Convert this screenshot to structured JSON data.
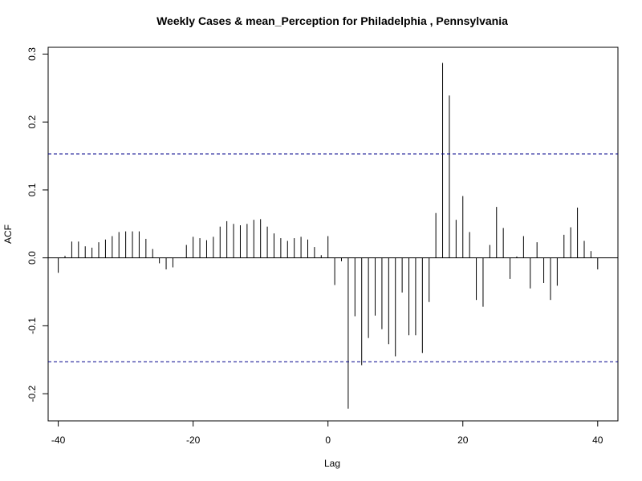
{
  "chart_data": {
    "type": "bar",
    "title": "Weekly Cases & mean_Perception for Philadelphia , Pennsylvania",
    "xlabel": "Lag",
    "ylabel": "ACF",
    "xlim": [
      -41.5,
      43
    ],
    "ylim": [
      -0.24,
      0.31
    ],
    "x_ticks": [
      -40,
      -20,
      0,
      20,
      40
    ],
    "x_tick_labels": [
      "-40",
      "-20",
      "0",
      "20",
      "40"
    ],
    "y_ticks": [
      -0.2,
      -0.1,
      0.0,
      0.1,
      0.2,
      0.3
    ],
    "y_tick_labels": [
      "-0.2",
      "-0.1",
      "0.0",
      "0.1",
      "0.2",
      "0.3"
    ],
    "confidence_bound": 0.153,
    "colors": {
      "bars": "#000000",
      "confidence": "#00008B",
      "zero_line": "#000000"
    },
    "series": [
      {
        "lags": [
          -40,
          -39,
          -38,
          -37,
          -36,
          -35,
          -34,
          -33,
          -32,
          -31,
          -30,
          -29,
          -28,
          -27,
          -26,
          -25,
          -24,
          -23,
          -22,
          -21,
          -20,
          -19,
          -18,
          -17,
          -16,
          -15,
          -14,
          -13,
          -12,
          -11,
          -10,
          -9,
          -8,
          -7,
          -6,
          -5,
          -4,
          -3,
          -2,
          -1,
          0,
          1,
          2,
          3,
          4,
          5,
          6,
          7,
          8,
          9,
          10,
          11,
          12,
          13,
          14,
          15,
          16,
          17,
          18,
          19,
          20,
          21,
          22,
          23,
          24,
          25,
          26,
          27,
          28,
          29,
          30,
          31,
          32,
          33,
          34,
          35,
          36,
          37,
          38,
          39,
          40
        ],
        "values": [
          -0.022,
          0.003,
          0.024,
          0.024,
          0.017,
          0.015,
          0.023,
          0.027,
          0.032,
          0.038,
          0.039,
          0.039,
          0.039,
          0.028,
          0.013,
          -0.008,
          -0.017,
          -0.014,
          0.0,
          0.019,
          0.031,
          0.029,
          0.026,
          0.031,
          0.046,
          0.054,
          0.05,
          0.048,
          0.05,
          0.056,
          0.057,
          0.046,
          0.036,
          0.029,
          0.025,
          0.029,
          0.031,
          0.027,
          0.016,
          0.004,
          0.032,
          -0.04,
          -0.005,
          -0.222,
          -0.086,
          -0.158,
          -0.118,
          -0.085,
          -0.105,
          -0.127,
          -0.145,
          -0.051,
          -0.114,
          -0.114,
          -0.14,
          -0.065,
          0.066,
          0.287,
          0.239,
          0.056,
          0.091,
          0.038,
          -0.062,
          -0.072,
          0.019,
          0.075,
          0.044,
          -0.031,
          0.002,
          0.032,
          -0.045,
          0.023,
          -0.037,
          -0.062,
          -0.041,
          0.034,
          0.045,
          0.074,
          0.025,
          0.01,
          -0.017
        ]
      }
    ]
  }
}
